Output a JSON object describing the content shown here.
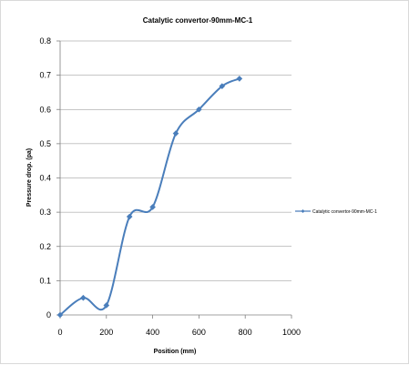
{
  "chart_data": {
    "type": "line",
    "title": "Catalytic convertor-90mm-MC-1",
    "xlabel": "Position  (mm)",
    "ylabel": "Pressure drop.  (pa)",
    "xlim": [
      0,
      1000
    ],
    "ylim": [
      0,
      0.8
    ],
    "xticks": [
      0,
      200,
      400,
      600,
      800,
      1000
    ],
    "yticks": [
      0,
      0.1,
      0.2,
      0.3,
      0.4,
      0.5,
      0.6,
      0.7,
      0.8
    ],
    "grid": "horizontal",
    "smooth": true,
    "legend_position": "right",
    "series": [
      {
        "name": "Catalytic convertor-90mm-MC-1",
        "color": "#4a7ebb",
        "marker": "diamond",
        "x": [
          0,
          100,
          200,
          300,
          400,
          500,
          600,
          700,
          775
        ],
        "y": [
          0,
          0.05,
          0.028,
          0.287,
          0.315,
          0.53,
          0.6,
          0.668,
          0.69
        ]
      }
    ]
  }
}
